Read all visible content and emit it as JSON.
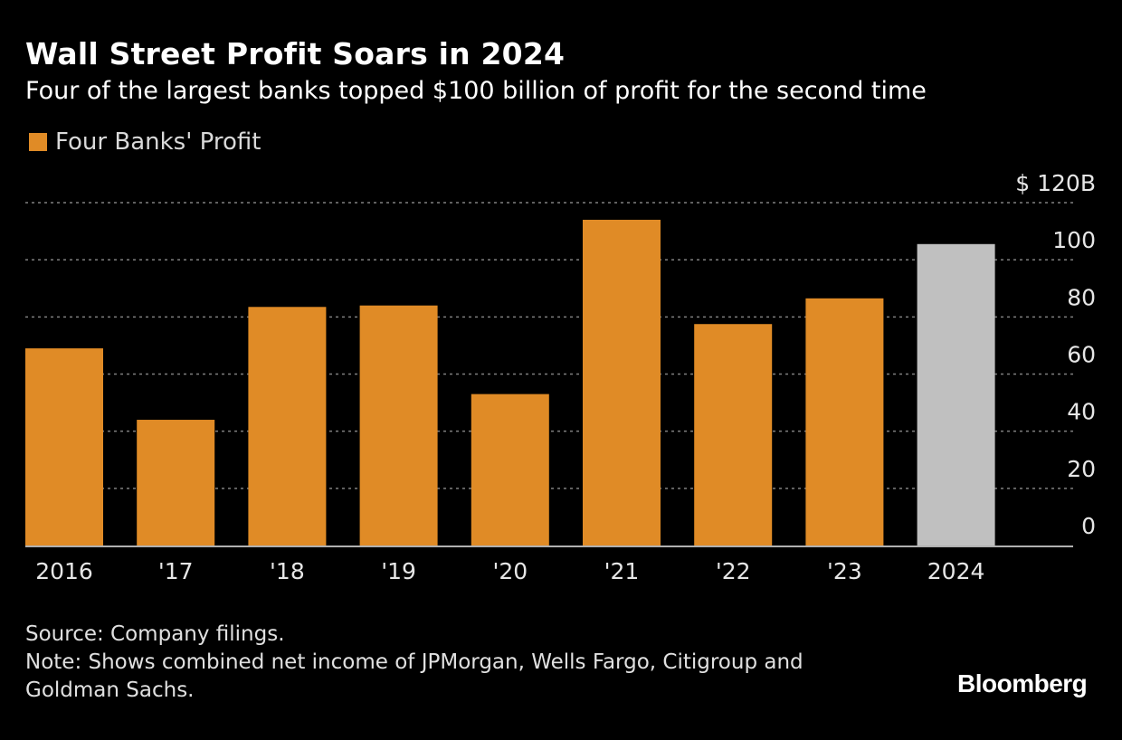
{
  "title": "Wall Street Profit Soars in 2024",
  "subtitle": "Four of the largest banks topped $100 billion of profit for the second time",
  "legend_label": "Four Banks' Profit",
  "source": "Source: Company filings.",
  "note_line1": "Note: Shows combined net income of JPMorgan, Wells Fargo, Citigroup and",
  "note_line2": "Goldman Sachs.",
  "brand": "Bloomberg",
  "colors": {
    "background": "#000000",
    "bar": "#e08b26",
    "highlight_bar": "#c0c0c0",
    "gridline": "#808080",
    "axis": "#b0b0b0"
  },
  "chart_data": {
    "type": "bar",
    "categories": [
      "2016",
      "'17",
      "'18",
      "'19",
      "'20",
      "'21",
      "'22",
      "'23",
      "2024"
    ],
    "series": [
      {
        "name": "Four Banks' Profit",
        "values": [
          69,
          44,
          83.5,
          84,
          53,
          114,
          77.5,
          86.5,
          105.5
        ]
      }
    ],
    "highlighted_category": "2024",
    "ylim": [
      0,
      120
    ],
    "yticks": [
      0,
      20,
      40,
      60,
      80,
      100,
      120
    ],
    "ytick_labels": [
      "0",
      "20",
      "40",
      "60",
      "80",
      "100",
      "$ 120B"
    ],
    "y_axis_side": "right",
    "grid": true,
    "legend_position": "top-left"
  }
}
